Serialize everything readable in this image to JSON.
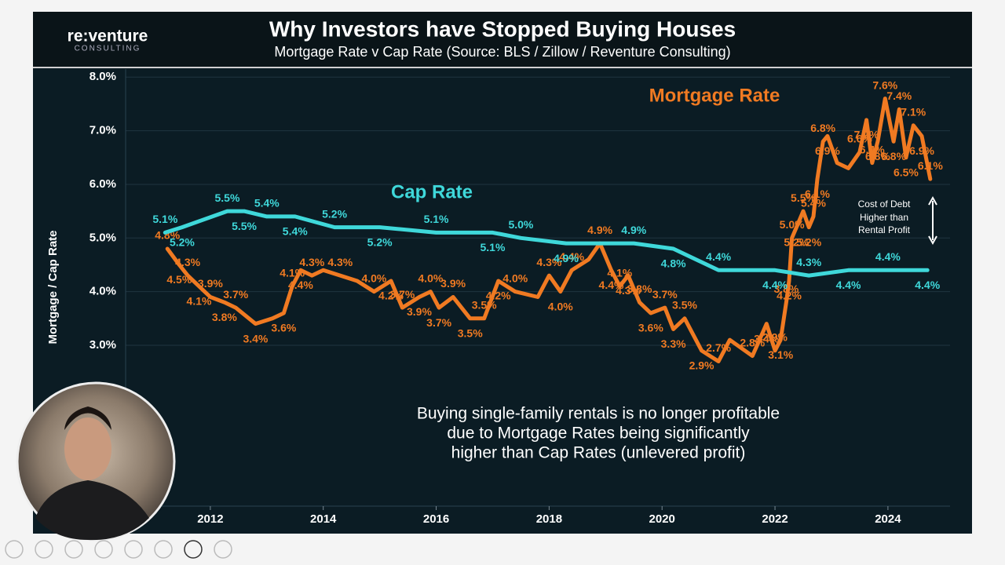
{
  "header": {
    "logo": "re:venture",
    "logo_sub": "CONSULTING"
  },
  "chart_data": {
    "type": "line",
    "title": "Why Investors have Stopped Buying Houses",
    "subtitle": "Mortgage Rate v Cap Rate (Source: BLS / Zillow / Reventure Consulting)",
    "y_label": "Mortgage / Cap Rate",
    "annotation": [
      "Cost of Debt",
      "Higher than",
      "Rental Profit"
    ],
    "footnote": [
      "Buying single-family rentals is no longer profitable",
      "due to Mortgage Rates being significantly",
      "higher than Cap Rates (unlevered profit)"
    ],
    "xlim": [
      2010.5,
      2025.1
    ],
    "xticks": [
      2012,
      2014,
      2016,
      2018,
      2020,
      2022,
      2024
    ],
    "ylim": [
      0,
      8.15
    ],
    "yticks": [
      {
        "value": 3,
        "label": "3.0%"
      },
      {
        "value": 4,
        "label": "4.0%"
      },
      {
        "value": 5,
        "label": "5.0%"
      },
      {
        "value": 6,
        "label": "6.0%"
      },
      {
        "value": 7,
        "label": "7.0%"
      },
      {
        "value": 8,
        "label": "8.0%"
      }
    ],
    "grid": true,
    "series": [
      {
        "name": "Mortgage Rate",
        "color": "#f07a22",
        "x": [
          2011.24,
          2011.45,
          2011.6,
          2011.8,
          2012.0,
          2012.25,
          2012.45,
          2012.8,
          2013.1,
          2013.3,
          2013.45,
          2013.6,
          2013.8,
          2014.0,
          2014.3,
          2014.6,
          2014.9,
          2015.2,
          2015.4,
          2015.7,
          2015.9,
          2016.05,
          2016.3,
          2016.6,
          2016.85,
          2017.1,
          2017.4,
          2017.8,
          2018.0,
          2018.2,
          2018.4,
          2018.7,
          2018.9,
          2019.1,
          2019.25,
          2019.4,
          2019.6,
          2019.8,
          2020.05,
          2020.2,
          2020.4,
          2020.7,
          2021.0,
          2021.2,
          2021.6,
          2021.85,
          2022.0,
          2022.1,
          2022.2,
          2022.25,
          2022.3,
          2022.38,
          2022.5,
          2022.6,
          2022.68,
          2022.75,
          2022.85,
          2022.93,
          2023.1,
          2023.3,
          2023.5,
          2023.62,
          2023.72,
          2023.82,
          2023.95,
          2024.1,
          2024.2,
          2024.32,
          2024.45,
          2024.6,
          2024.75
        ],
        "values": [
          4.8,
          4.5,
          4.3,
          4.1,
          3.9,
          3.8,
          3.7,
          3.4,
          3.5,
          3.6,
          4.1,
          4.4,
          4.3,
          4.4,
          4.3,
          4.2,
          4.0,
          4.2,
          3.7,
          3.9,
          4.0,
          3.7,
          3.9,
          3.5,
          3.5,
          4.2,
          4.0,
          3.9,
          4.3,
          4.0,
          4.4,
          4.6,
          4.9,
          4.4,
          4.1,
          4.3,
          3.8,
          3.6,
          3.7,
          3.3,
          3.5,
          2.9,
          2.7,
          3.1,
          2.8,
          3.4,
          2.9,
          3.1,
          3.8,
          4.2,
          5.0,
          5.2,
          5.5,
          5.2,
          5.4,
          6.1,
          6.8,
          6.9,
          6.4,
          6.3,
          6.6,
          7.2,
          6.4,
          6.8,
          7.6,
          6.8,
          7.4,
          6.5,
          7.1,
          6.9,
          6.1
        ],
        "value_labels": [
          "4.8%",
          "4.5%",
          "4.3%",
          "4.1%",
          "3.9%",
          "3.8%",
          "3.7%",
          "3.4%",
          null,
          "3.6%",
          "4.1%",
          "4.4%",
          "4.3%",
          null,
          "4.3%",
          null,
          "4.0%",
          "4.2%",
          "3.7%",
          "3.9%",
          "4.0%",
          "3.7%",
          "3.9%",
          "3.5%",
          "3.5%",
          "4.2%",
          "4.0%",
          null,
          "4.3%",
          "4.0%",
          "4.4%",
          null,
          "4.9%",
          "4.4%",
          "4.1%",
          "4.3%",
          "3.8%",
          "3.6%",
          "3.7%",
          "3.3%",
          "3.5%",
          "2.9%",
          "2.7%",
          null,
          "2.8%",
          "3.4%",
          "2.9%",
          "3.1%",
          "3.8%",
          "4.2%",
          "5.0%",
          "5.2%",
          "5.5%",
          "5.2%",
          "5.4%",
          "6.1%",
          "6.8%",
          "6.9%",
          null,
          null,
          "6.6%",
          "7.2%",
          "6.4%",
          "6.8%",
          "7.6%",
          "6.8%",
          "7.4%",
          "6.5%",
          "7.1%",
          "6.9%",
          "6.1%"
        ]
      },
      {
        "name": "Cap Rate",
        "color": "#3fd8da",
        "x": [
          2011.2,
          2011.5,
          2012.3,
          2012.6,
          2013.0,
          2013.5,
          2014.2,
          2015.0,
          2016.0,
          2017.0,
          2017.5,
          2018.3,
          2019.5,
          2020.2,
          2021.0,
          2022.0,
          2022.6,
          2023.3,
          2024.0,
          2024.7
        ],
        "values": [
          5.1,
          5.2,
          5.5,
          5.5,
          5.4,
          5.4,
          5.2,
          5.2,
          5.1,
          5.1,
          5.0,
          4.9,
          4.9,
          4.8,
          4.4,
          4.4,
          4.3,
          4.4,
          4.4,
          4.4
        ],
        "value_labels": [
          "5.1%",
          "5.2%",
          "5.5%",
          "5.5%",
          "5.4%",
          "5.4%",
          "5.2%",
          "5.2%",
          "5.1%",
          "5.1%",
          "5.0%",
          "4.9%",
          "4.9%",
          "4.8%",
          "4.4%",
          "4.4%",
          "4.3%",
          "4.4%",
          "4.4%",
          "4.4%"
        ]
      }
    ]
  }
}
